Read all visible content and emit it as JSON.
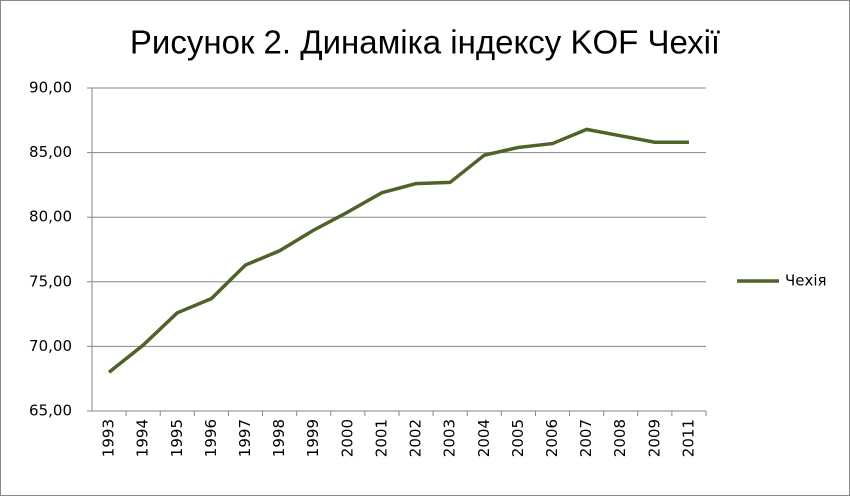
{
  "chart_data": {
    "type": "line",
    "title": "Рисунок 2. Динаміка індексу KOF Чехії",
    "categories": [
      "1993",
      "1994",
      "1995",
      "1996",
      "1997",
      "1998",
      "1999",
      "2000",
      "2001",
      "2002",
      "2003",
      "2004",
      "2005",
      "2006",
      "2007",
      "2008",
      "2009",
      "2011"
    ],
    "series": [
      {
        "name": "Чехія",
        "color": "#4f6228",
        "values": [
          68.0,
          70.1,
          72.6,
          73.7,
          76.3,
          77.4,
          79.0,
          80.4,
          81.9,
          82.6,
          82.7,
          84.8,
          85.4,
          85.7,
          86.8,
          86.3,
          85.8,
          85.8
        ]
      }
    ],
    "ylim": [
      65,
      90
    ],
    "yticks": [
      {
        "value": 65,
        "label": "65,00"
      },
      {
        "value": 70,
        "label": "70,00"
      },
      {
        "value": 75,
        "label": "75,00"
      },
      {
        "value": 80,
        "label": "80,00"
      },
      {
        "value": 85,
        "label": "85,00"
      },
      {
        "value": 90,
        "label": "90,00"
      }
    ],
    "grid": true,
    "legend": "right"
  }
}
